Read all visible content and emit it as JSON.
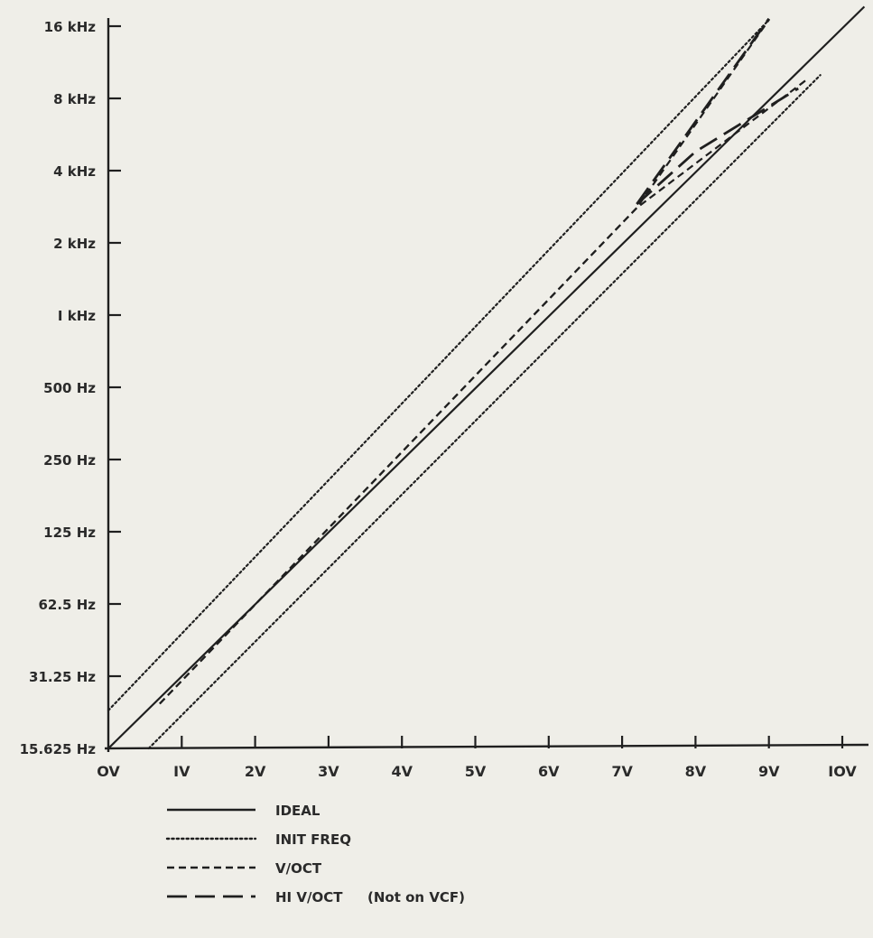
{
  "chart_data": {
    "type": "line",
    "title": "",
    "xlabel": "",
    "ylabel": "",
    "y_scale": "log2",
    "xlim": [
      0,
      10
    ],
    "ylim": [
      15.625,
      16000
    ],
    "x_ticks": [
      {
        "value": 0,
        "label": "OV"
      },
      {
        "value": 1,
        "label": "IV"
      },
      {
        "value": 2,
        "label": "2V"
      },
      {
        "value": 3,
        "label": "3V"
      },
      {
        "value": 4,
        "label": "4V"
      },
      {
        "value": 5,
        "label": "5V"
      },
      {
        "value": 6,
        "label": "6V"
      },
      {
        "value": 7,
        "label": "7V"
      },
      {
        "value": 8,
        "label": "8V"
      },
      {
        "value": 9,
        "label": "9V"
      },
      {
        "value": 10,
        "label": "IOV"
      }
    ],
    "y_ticks": [
      {
        "value": 15.625,
        "label": "15.625 Hz"
      },
      {
        "value": 31.25,
        "label": "31.25 Hz"
      },
      {
        "value": 62.5,
        "label": "62.5 Hz"
      },
      {
        "value": 125,
        "label": "125 Hz"
      },
      {
        "value": 250,
        "label": "250 Hz"
      },
      {
        "value": 500,
        "label": "500 Hz"
      },
      {
        "value": 1000,
        "label": "I kHz"
      },
      {
        "value": 2000,
        "label": "2 kHz"
      },
      {
        "value": 4000,
        "label": "4 kHz"
      },
      {
        "value": 8000,
        "label": "8 kHz"
      },
      {
        "value": 16000,
        "label": "16 kHz"
      }
    ],
    "grid": false,
    "legend_position": "bottom",
    "series": [
      {
        "name": "IDEAL",
        "style": "solid",
        "color": "#1f1f1f",
        "points": [
          [
            0,
            15.625
          ],
          [
            10.3,
            19300
          ]
        ]
      },
      {
        "name": "INIT FREQ",
        "style": "dotted",
        "color": "#1f1f1f",
        "points": [
          [
            0,
            22.5
          ],
          [
            9.0,
            17000
          ]
        ]
      },
      {
        "name": "INIT FREQ",
        "style": "dotted",
        "color": "#1f1f1f",
        "points": [
          [
            0.55,
            15.625
          ],
          [
            9.7,
            10000
          ]
        ]
      },
      {
        "name": "V/OCT",
        "style": "dashed",
        "color": "#1f1f1f",
        "points": [
          [
            0.7,
            24
          ],
          [
            7.2,
            2800
          ],
          [
            9.0,
            17000
          ]
        ]
      },
      {
        "name": "V/OCT",
        "style": "dashed",
        "color": "#1f1f1f",
        "points": [
          [
            0.7,
            24
          ],
          [
            7.2,
            2800
          ],
          [
            9.5,
            9500
          ]
        ]
      },
      {
        "name": "HI V/OCT (Not on VCF)",
        "style": "long-dash",
        "color": "#1f1f1f",
        "points": [
          [
            7.2,
            2900
          ],
          [
            9.0,
            17200
          ]
        ]
      },
      {
        "name": "HI V/OCT (Not on VCF)",
        "style": "long-dash",
        "color": "#1f1f1f",
        "points": [
          [
            7.2,
            2900
          ],
          [
            8.0,
            4800
          ],
          [
            9.4,
            8800
          ]
        ]
      }
    ],
    "legend": [
      {
        "label": "IDEAL",
        "style": "solid"
      },
      {
        "label": "INIT FREQ",
        "style": "dotted"
      },
      {
        "label": "V/OCT",
        "style": "dashed"
      },
      {
        "label": "HI V/OCT",
        "note": "(Not on VCF)",
        "style": "long-dash"
      }
    ]
  },
  "colors": {
    "background": "#efeee8",
    "ink": "#1f1f1f"
  }
}
